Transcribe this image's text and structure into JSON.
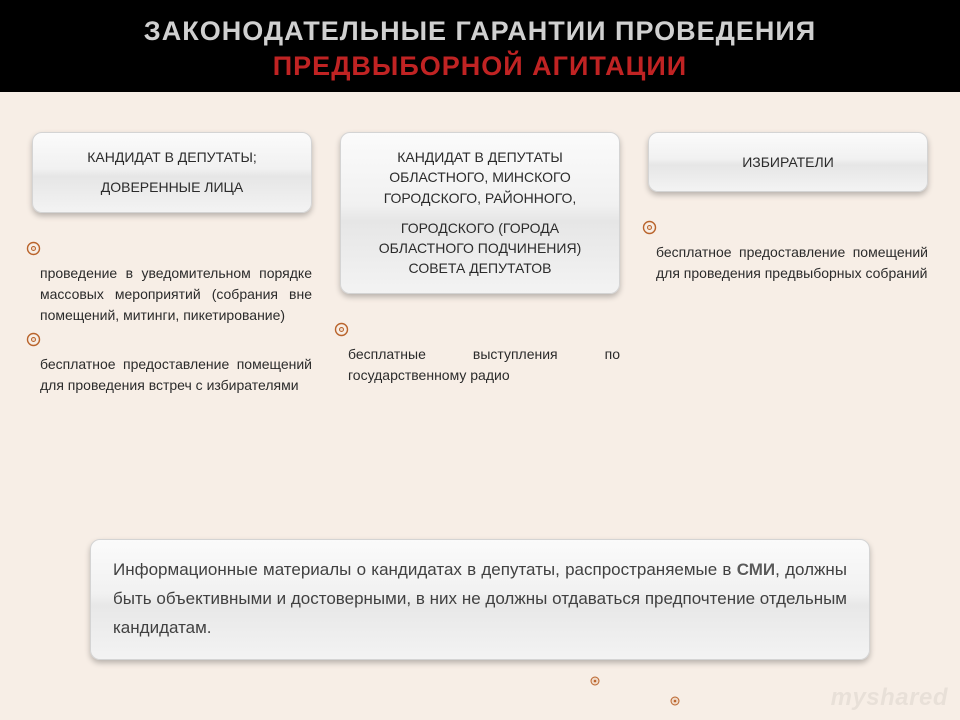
{
  "colors": {
    "page_bg": "#f7eee6",
    "header_bg": "#000000",
    "title_gray": "#d0d0d0",
    "title_red": "#c02323",
    "card_border": "#d4d4d4",
    "text": "#2b2b2b",
    "footer_text": "#414141",
    "bullet_stroke": "#b9632b",
    "bullet_fill": "#f0d9c7"
  },
  "font_sizes": {
    "title": 27,
    "card": 14,
    "bullet": 14,
    "footer": 17
  },
  "title": {
    "line1": "ЗАКОНОДАТЕЛЬНЫЕ ГАРАНТИИ ПРОВЕДЕНИЯ",
    "line2": "ПРЕДВЫБОРНОЙ АГИТАЦИИ"
  },
  "columns": [
    {
      "card_lines": [
        "КАНДИДАТ В ДЕПУТАТЫ;",
        "ДОВЕРЕННЫЕ ЛИЦА"
      ],
      "card_variant": "normal",
      "bullets": [
        "проведение в уведомительном порядке массовых мероприятий (собрания вне помещений, митинги, пикетирование)",
        "бесплатное предоставление помещений для проведения встреч с избирателями"
      ]
    },
    {
      "card_lines": [
        "КАНДИДАТ В ДЕПУТАТЫ ОБЛАСТНОГО, МИНСКОГО ГОРОДСКОГО, РАЙОННОГО,",
        "ГОРОДСКОГО (ГОРОДА ОБЛАСТНОГО ПОДЧИНЕНИЯ) СОВЕТА ДЕПУТАТОВ"
      ],
      "card_variant": "tall",
      "bullets": [
        "бесплатные выступления по государственному радио"
      ]
    },
    {
      "card_lines": [
        "ИЗБИРАТЕЛИ"
      ],
      "card_variant": "short",
      "bullets": [
        "бесплатное предоставление помещений для проведения предвыборных собраний"
      ]
    }
  ],
  "footer": {
    "before": "Информационные материалы о кандидатах в депутаты, распространяемые в ",
    "smi": "СМИ",
    "after": ", должны быть объективными и достоверными, в них не должны отдаваться предпочтение отдельным кандидатам."
  },
  "watermark": "myshared"
}
